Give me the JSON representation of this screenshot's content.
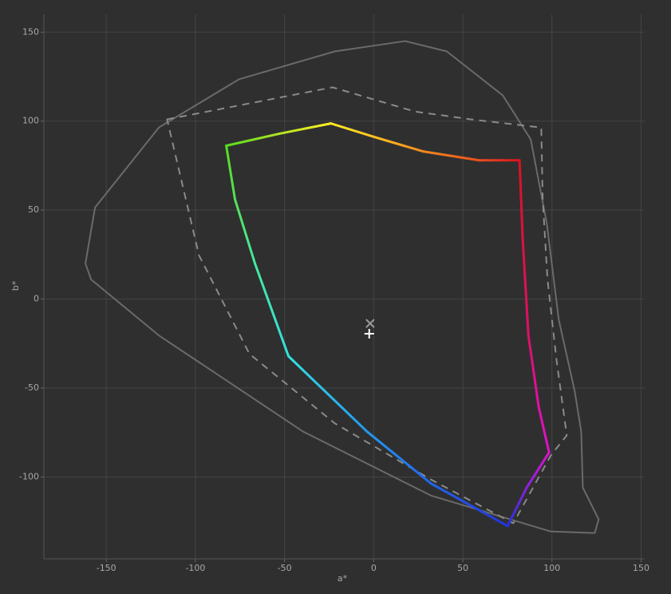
{
  "chart_data": {
    "type": "line",
    "x_label": "a*",
    "y_label": "b*",
    "xlim": [
      -185,
      152
    ],
    "ylim": [
      -146,
      160
    ],
    "xticks": [
      -150,
      -100,
      -50,
      0,
      50,
      100,
      150
    ],
    "yticks": [
      -100,
      -50,
      0,
      50,
      100,
      150
    ],
    "grid": true,
    "series": [
      {
        "color": "#6a6a6a",
        "style": "solid",
        "closed": true,
        "x": [
          -161.7,
          -156.3,
          -120.4,
          -75.6,
          -21.8,
          17.7,
          41,
          72.4,
          88.1,
          97.1,
          103.8,
          112.8,
          116.4,
          117.3,
          126.2,
          124,
          99.3,
          32.1,
          -39.7,
          -120.4,
          -158.5
        ],
        "y": [
          20,
          51.5,
          96.5,
          123.5,
          139.2,
          145,
          139.2,
          114.5,
          89.7,
          42.5,
          -11.5,
          -52,
          -74.4,
          -105.9,
          -123.8,
          -131.5,
          -130.6,
          -110.4,
          -74.4,
          -20.5,
          11
        ]
      },
      {
        "color": "#8a8a8a",
        "style": "dashed",
        "closed": true,
        "x": [
          -115.9,
          -23.1,
          23.1,
          54.5,
          94,
          94.8,
          97.5,
          102.5,
          108.3,
          99.4,
          78.3,
          32.1,
          -21.7,
          -69.7,
          -98
        ],
        "y": [
          101,
          119,
          105.4,
          101,
          96.4,
          56,
          11,
          -33.9,
          -76.6,
          -87.8,
          -126,
          -101.4,
          -69.9,
          -30.8,
          24.6
        ]
      },
      {
        "style": "gradient",
        "closed": true,
        "x": [
          -82.7,
          -53.1,
          -24,
          0.7,
          27.6,
          59,
          81.8,
          83.6,
          86.8,
          92.6,
          98.4,
          85.8,
          75.1,
          32.1,
          -3.8,
          -47.8,
          -66.6,
          -77.8
        ],
        "y": [
          86.2,
          92.9,
          98.7,
          91,
          83,
          78,
          78,
          33.5,
          -20.5,
          -60.9,
          -86.2,
          -106,
          -127.5,
          -103.6,
          -74.4,
          -32.1,
          20,
          56
        ],
        "point_colors": [
          "#55dd22",
          "#b0e622",
          "#ffee22",
          "#ffc020",
          "#f08a1e",
          "#e8501e",
          "#dd1122",
          "#dd1144",
          "#dd1166",
          "#dd11aa",
          "#dd11cc",
          "#8a22dd",
          "#2233dd",
          "#2266ee",
          "#2299ee",
          "#33e0e0",
          "#44e8a0",
          "#55e055"
        ]
      }
    ],
    "markers": [
      {
        "x": -2,
        "y": -13.7,
        "symbol": "x",
        "color": "#9a9a9a"
      },
      {
        "x": -2.5,
        "y": -19.5,
        "symbol": "plus",
        "color": "#ffffff"
      }
    ]
  }
}
